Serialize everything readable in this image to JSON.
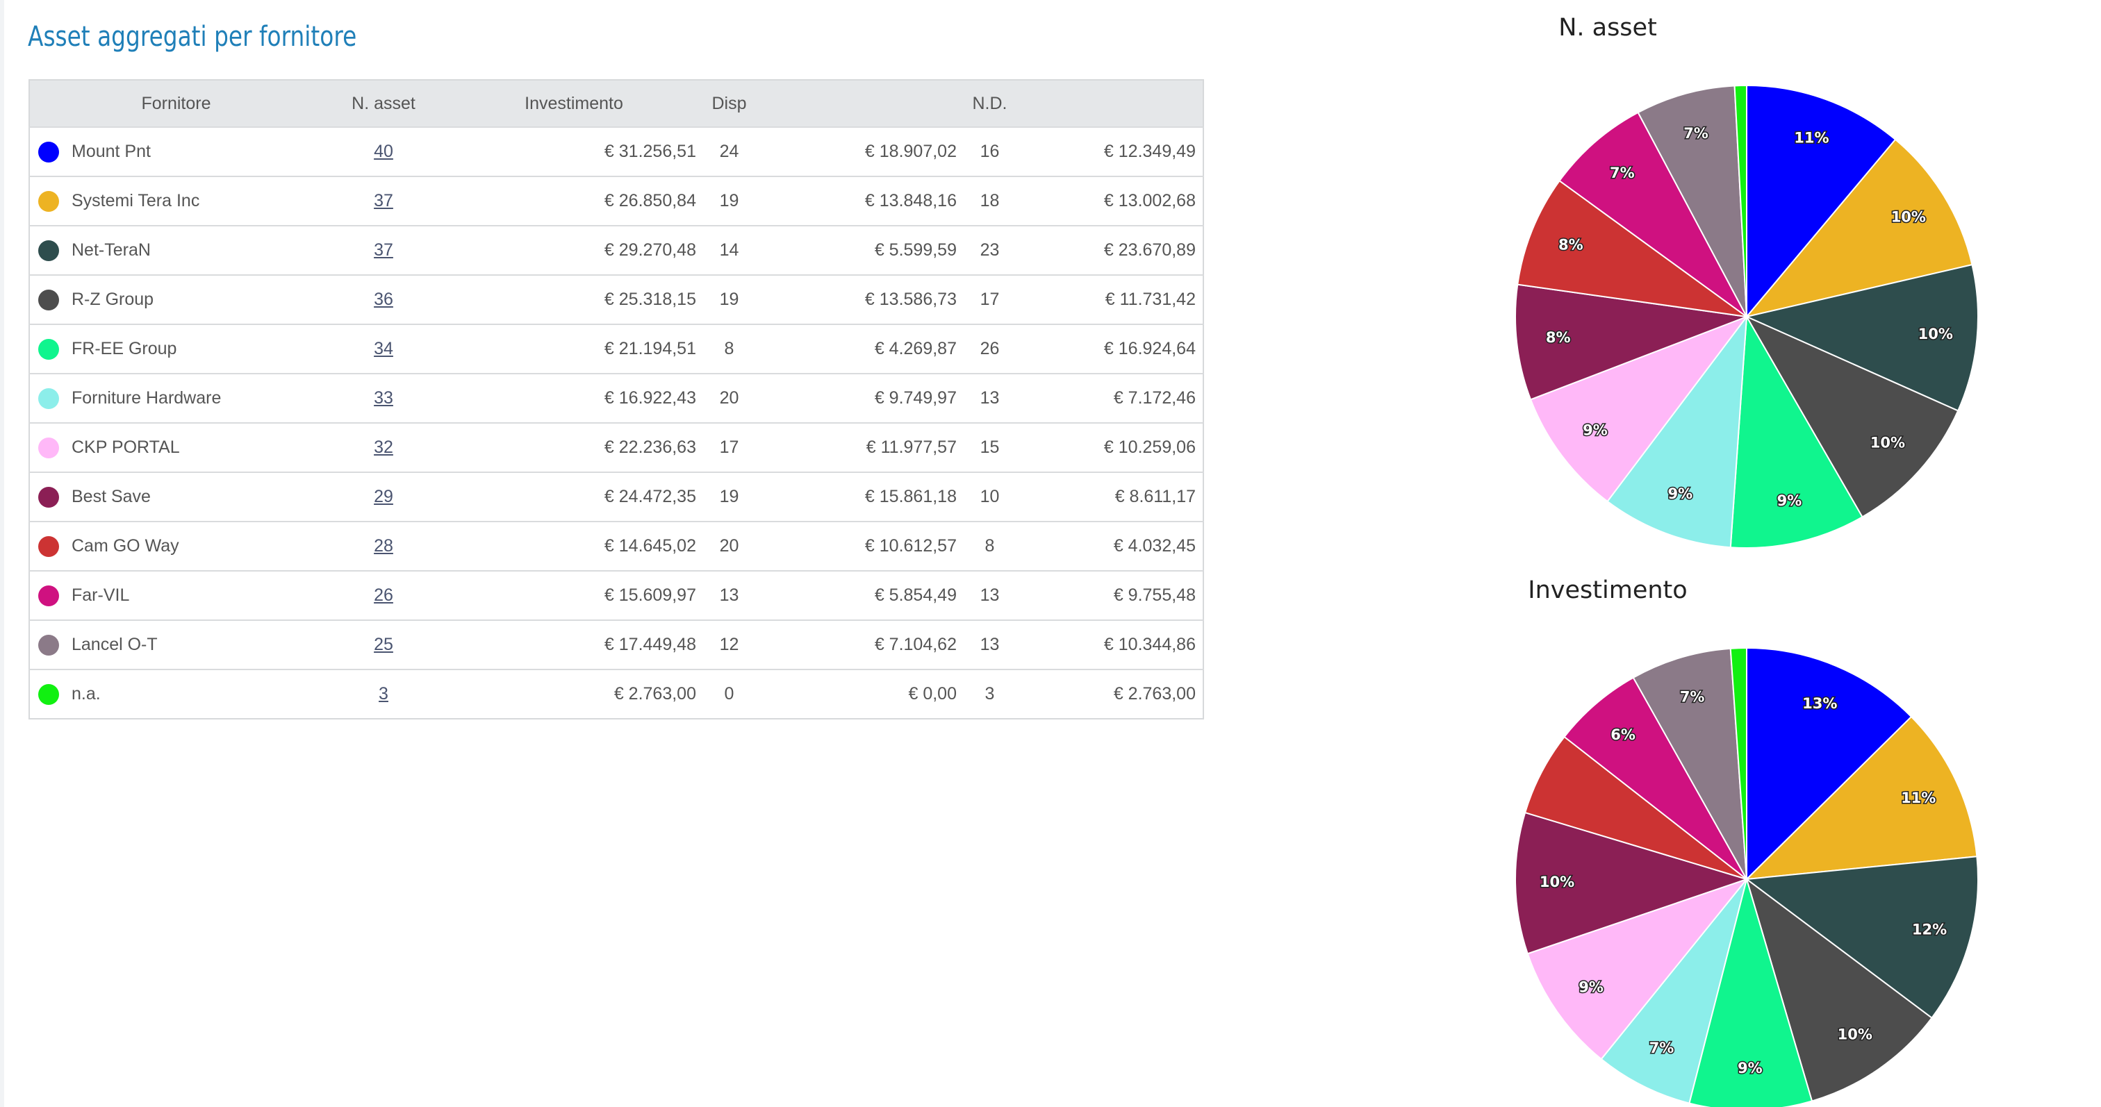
{
  "title": "Asset aggregati per fornitore",
  "table": {
    "headers": {
      "supplier": "Fornitore",
      "assets": "N. asset",
      "investment": "Investimento",
      "available": "Disp",
      "nd": "N.D."
    },
    "rows": [
      {
        "color": "#0000ff",
        "name": "Mount Pnt",
        "assets": "40",
        "investment": "€ 31.256,51",
        "disp_count": "24",
        "disp_value": "€ 18.907,02",
        "nd_count": "16",
        "nd_value": "€ 12.349,49"
      },
      {
        "color": "#edb323",
        "name": "Systemi Tera Inc",
        "assets": "37",
        "investment": "€ 26.850,84",
        "disp_count": "19",
        "disp_value": "€ 13.848,16",
        "nd_count": "18",
        "nd_value": "€ 13.002,68"
      },
      {
        "color": "#2e4d4d",
        "name": "Net-TeraN",
        "assets": "37",
        "investment": "€ 29.270,48",
        "disp_count": "14",
        "disp_value": "€ 5.599,59",
        "nd_count": "23",
        "nd_value": "€ 23.670,89"
      },
      {
        "color": "#4d4d4d",
        "name": "R-Z Group",
        "assets": "36",
        "investment": "€ 25.318,15",
        "disp_count": "19",
        "disp_value": "€ 13.586,73",
        "nd_count": "17",
        "nd_value": "€ 11.731,42"
      },
      {
        "color": "#10f58e",
        "name": "FR-EE Group",
        "assets": "34",
        "investment": "€ 21.194,51",
        "disp_count": "8",
        "disp_value": "€ 4.269,87",
        "nd_count": "26",
        "nd_value": "€ 16.924,64"
      },
      {
        "color": "#8ceeea",
        "name": "Forniture Hardware",
        "assets": "33",
        "investment": "€ 16.922,43",
        "disp_count": "20",
        "disp_value": "€ 9.749,97",
        "nd_count": "13",
        "nd_value": "€ 7.172,46"
      },
      {
        "color": "#ffb8f8",
        "name": "CKP PORTAL",
        "assets": "32",
        "investment": "€ 22.236,63",
        "disp_count": "17",
        "disp_value": "€ 11.977,57",
        "nd_count": "15",
        "nd_value": "€ 10.259,06"
      },
      {
        "color": "#8b1f55",
        "name": "Best Save",
        "assets": "29",
        "investment": "€ 24.472,35",
        "disp_count": "19",
        "disp_value": "€ 15.861,18",
        "nd_count": "10",
        "nd_value": "€ 8.611,17"
      },
      {
        "color": "#cc3333",
        "name": "Cam GO Way",
        "assets": "28",
        "investment": "€ 14.645,02",
        "disp_count": "20",
        "disp_value": "€ 10.612,57",
        "nd_count": "8",
        "nd_value": "€ 4.032,45"
      },
      {
        "color": "#cf1180",
        "name": "Far-VIL",
        "assets": "26",
        "investment": "€ 15.609,97",
        "disp_count": "13",
        "disp_value": "€ 5.854,49",
        "nd_count": "13",
        "nd_value": "€ 9.755,48"
      },
      {
        "color": "#8b7a88",
        "name": "Lancel O-T",
        "assets": "25",
        "investment": "€ 17.449,48",
        "disp_count": "12",
        "disp_value": "€ 7.104,62",
        "nd_count": "13",
        "nd_value": "€ 10.344,86"
      },
      {
        "color": "#11f011",
        "name": "n.a.",
        "assets": "3",
        "investment": "€ 2.763,00",
        "disp_count": "0",
        "disp_value": "€ 0,00",
        "nd_count": "3",
        "nd_value": "€ 2.763,00"
      }
    ]
  },
  "chart_data": [
    {
      "type": "pie",
      "title": "N. asset",
      "categories": [
        "Mount Pnt",
        "Systemi Tera Inc",
        "Net-TeraN",
        "R-Z Group",
        "FR-EE Group",
        "Forniture Hardware",
        "CKP PORTAL",
        "Best Save",
        "Cam GO Way",
        "Far-VIL",
        "Lancel O-T",
        "n.a."
      ],
      "values": [
        40,
        37,
        37,
        36,
        34,
        33,
        32,
        29,
        28,
        26,
        25,
        3
      ],
      "labels": [
        "11%",
        "10%",
        "10%",
        "10%",
        "9%",
        "9%",
        "9%",
        "8%",
        "8%",
        "7%",
        "7%",
        ""
      ],
      "colors": [
        "#0000ff",
        "#edb323",
        "#2e4d4d",
        "#4d4d4d",
        "#10f58e",
        "#8ceeea",
        "#ffb8f8",
        "#8b1f55",
        "#cc3333",
        "#cf1180",
        "#8b7a88",
        "#11f011"
      ]
    },
    {
      "type": "pie",
      "title": "Investimento",
      "categories": [
        "Mount Pnt",
        "Systemi Tera Inc",
        "Net-TeraN",
        "R-Z Group",
        "FR-EE Group",
        "Forniture Hardware",
        "CKP PORTAL",
        "Best Save",
        "Cam GO Way",
        "Far-VIL",
        "Lancel O-T",
        "n.a."
      ],
      "values": [
        31256.51,
        26850.84,
        29270.48,
        25318.15,
        21194.51,
        16922.43,
        22236.63,
        24472.35,
        14645.02,
        15609.97,
        17449.48,
        2763.0
      ],
      "labels": [
        "13%",
        "11%",
        "12%",
        "10%",
        "9%",
        "7%",
        "9%",
        "10%",
        "",
        "6%",
        "7%",
        ""
      ],
      "colors": [
        "#0000ff",
        "#edb323",
        "#2e4d4d",
        "#4d4d4d",
        "#10f58e",
        "#8ceeea",
        "#ffb8f8",
        "#8b1f55",
        "#cc3333",
        "#cf1180",
        "#8b7a88",
        "#11f011"
      ]
    }
  ]
}
